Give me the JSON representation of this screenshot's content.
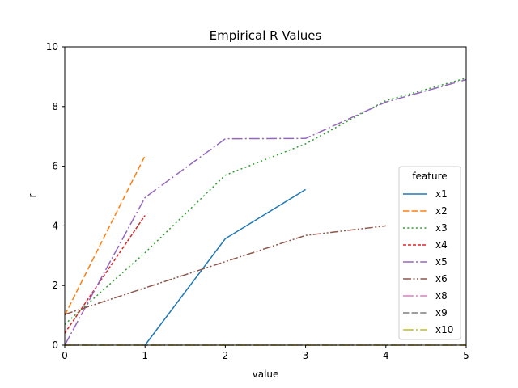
{
  "chart_data": {
    "type": "line",
    "title": "Empirical R Values",
    "xlabel": "value",
    "ylabel": "r",
    "xlim": [
      0,
      5
    ],
    "ylim": [
      0,
      10
    ],
    "xticks": [
      "0",
      "1",
      "2",
      "3",
      "4",
      "5"
    ],
    "yticks": [
      "0",
      "2",
      "4",
      "6",
      "8",
      "10"
    ],
    "grid": false,
    "legend": {
      "title": "feature",
      "placement": "center-right"
    },
    "series": [
      {
        "name": "x1",
        "color": "#1f77b4",
        "dash": "solid",
        "x": [
          1,
          2,
          3
        ],
        "y": [
          0,
          3.57,
          5.22
        ]
      },
      {
        "name": "x2",
        "color": "#ff7f0e",
        "dash": "dashed",
        "x": [
          0,
          1
        ],
        "y": [
          1.0,
          6.35
        ]
      },
      {
        "name": "x3",
        "color": "#2ca02c",
        "dash": "dotted",
        "x": [
          0,
          1,
          2,
          3,
          4,
          5
        ],
        "y": [
          0.7,
          3.1,
          5.7,
          6.75,
          8.2,
          8.95
        ]
      },
      {
        "name": "x4",
        "color": "#d62728",
        "dash": "dashed-short",
        "x": [
          0,
          1
        ],
        "y": [
          0.4,
          4.35
        ]
      },
      {
        "name": "x5",
        "color": "#9467bd",
        "dash": "dashdot",
        "x": [
          0,
          1,
          2,
          3,
          4,
          5
        ],
        "y": [
          0,
          4.95,
          6.92,
          6.93,
          8.15,
          8.9
        ]
      },
      {
        "name": "x6",
        "color": "#8c564b",
        "dash": "dashdotdot",
        "x": [
          0,
          1,
          2,
          3,
          4
        ],
        "y": [
          1.03,
          1.92,
          2.8,
          3.68,
          4.0
        ]
      },
      {
        "name": "x8",
        "color": "#e377c2",
        "dash": "dashdot",
        "x": [
          0,
          5
        ],
        "y": [
          0,
          0
        ]
      },
      {
        "name": "x9",
        "color": "#7f7f7f",
        "dash": "dashed",
        "x": [
          0,
          5
        ],
        "y": [
          0,
          0
        ]
      },
      {
        "name": "x10",
        "color": "#bcbd22",
        "dash": "dashdot",
        "x": [
          0,
          5
        ],
        "y": [
          0,
          0
        ]
      }
    ]
  }
}
